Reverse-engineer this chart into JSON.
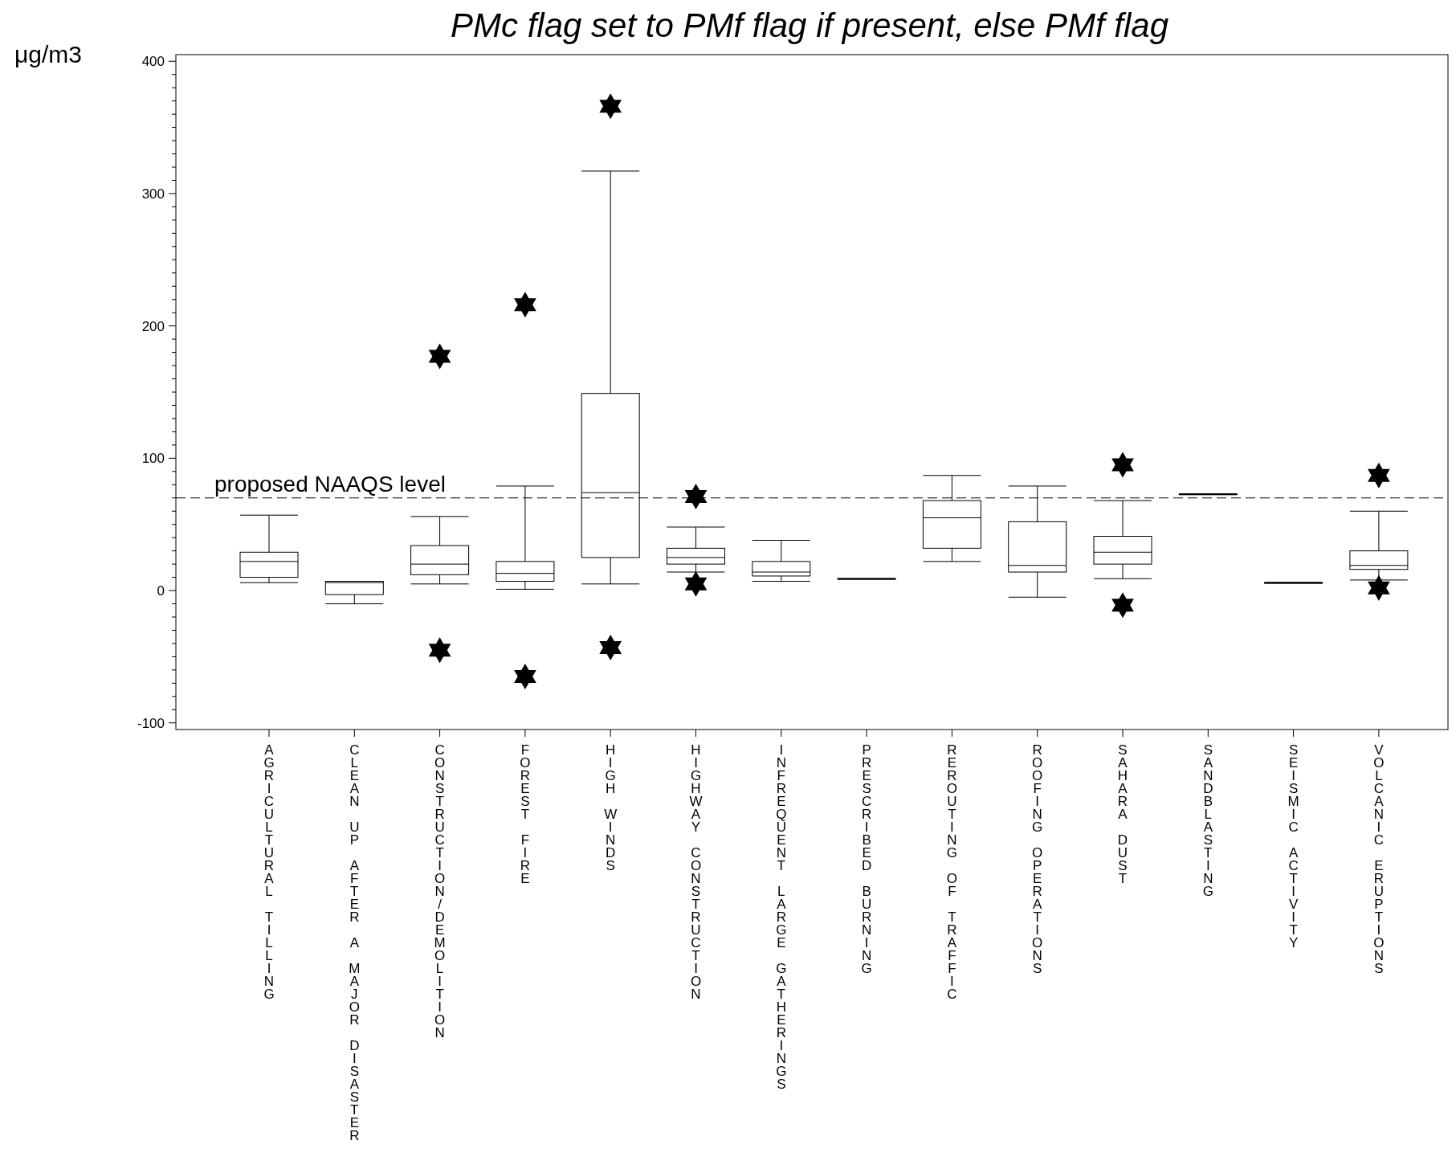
{
  "chart_data": {
    "type": "box",
    "title": "PMc flag set to PMf flag if present, else PMf flag",
    "ylabel": "μg/m3",
    "categories": [
      "AGRICULTURAL TILLING",
      "CLEAN UP AFTER A MAJOR DISASTER",
      "CONSTRUCTION/DEMOLITION",
      "FOREST FIRE",
      "HIGH WINDS",
      "HIGHWAY CONSTRUCTION",
      "INFREQUENT LARGE GATHERINGS",
      "PRESCRIBED BURNING",
      "REROUTING OF TRAFFIC",
      "ROOFING OPERATIONS",
      "SAHARA DUST",
      "SANDBLASTING",
      "SEISMIC ACTIVITY",
      "VOLCANIC ERUPTIONS"
    ],
    "boxes": [
      {
        "low": 6,
        "q1": 10,
        "median": 22,
        "q3": 29,
        "high": 57
      },
      {
        "low": -10,
        "q1": -3,
        "median": 6,
        "q3": 7,
        "high": 7
      },
      {
        "low": 5,
        "q1": 12,
        "median": 20,
        "q3": 34,
        "high": 56,
        "outliers": [
          177,
          -45
        ]
      },
      {
        "low": 1,
        "q1": 7,
        "median": 13,
        "q3": 22,
        "high": 79,
        "outliers": [
          216,
          -65
        ]
      },
      {
        "low": 5,
        "q1": 25,
        "median": 74,
        "q3": 149,
        "high": 317,
        "outliers": [
          366,
          -43
        ]
      },
      {
        "low": 14,
        "q1": 20,
        "median": 25,
        "q3": 32,
        "high": 48,
        "outliers": [
          71,
          5
        ]
      },
      {
        "low": 7,
        "q1": 11,
        "median": 14,
        "q3": 22,
        "high": 38
      },
      {
        "low": 9,
        "q1": 9,
        "median": 9,
        "q3": 9,
        "high": 9
      },
      {
        "low": 22,
        "q1": 32,
        "median": 55,
        "q3": 68,
        "high": 87
      },
      {
        "low": -5,
        "q1": 14,
        "median": 19,
        "q3": 52,
        "high": 79
      },
      {
        "low": 9,
        "q1": 20,
        "median": 29,
        "q3": 41,
        "high": 68,
        "outliers": [
          95,
          -11
        ]
      },
      {
        "low": 73,
        "q1": 73,
        "median": 73,
        "q3": 73,
        "high": 73
      },
      {
        "low": 6,
        "q1": 6,
        "median": 6,
        "q3": 6,
        "high": 6
      },
      {
        "low": 8,
        "q1": 16,
        "median": 19,
        "q3": 30,
        "high": 60,
        "outliers": [
          87,
          2
        ]
      }
    ],
    "marker": "star",
    "ylim": [
      -105,
      405
    ],
    "yticks": [
      -100,
      {
        "value": -90,
        "label": null
      },
      {
        "value": -80,
        "label": null
      },
      {
        "value": -70,
        "label": null
      },
      {
        "value": -60,
        "label": null
      },
      {
        "value": -50,
        "label": null
      },
      {
        "value": -40,
        "label": null
      },
      {
        "value": -30,
        "label": null
      },
      {
        "value": -20,
        "label": null
      },
      {
        "value": -10,
        "label": null
      },
      0,
      {
        "value": 10,
        "label": null
      },
      {
        "value": 20,
        "label": null
      },
      {
        "value": 30,
        "label": null
      },
      {
        "value": 40,
        "label": null
      },
      {
        "value": 50,
        "label": null
      },
      {
        "value": 60,
        "label": null
      },
      {
        "value": 70,
        "label": null
      },
      {
        "value": 80,
        "label": null
      },
      {
        "value": 90,
        "label": null
      },
      100,
      {
        "value": 110,
        "label": null
      },
      {
        "value": 120,
        "label": null
      },
      {
        "value": 130,
        "label": null
      },
      {
        "value": 140,
        "label": null
      },
      {
        "value": 150,
        "label": null
      },
      {
        "value": 160,
        "label": null
      },
      {
        "value": 170,
        "label": null
      },
      {
        "value": 180,
        "label": null
      },
      {
        "value": 190,
        "label": null
      },
      200,
      {
        "value": 210,
        "label": null
      },
      {
        "value": 220,
        "label": null
      },
      {
        "value": 230,
        "label": null
      },
      {
        "value": 240,
        "label": null
      },
      {
        "value": 250,
        "label": null
      },
      {
        "value": 260,
        "label": null
      },
      {
        "value": 270,
        "label": null
      },
      {
        "value": 280,
        "label": null
      },
      {
        "value": 290,
        "label": null
      },
      300,
      {
        "value": 310,
        "label": null
      },
      {
        "value": 320,
        "label": null
      },
      {
        "value": 330,
        "label": null
      },
      {
        "value": 340,
        "label": null
      },
      {
        "value": 350,
        "label": null
      },
      {
        "value": 360,
        "label": null
      },
      {
        "value": 370,
        "label": null
      },
      {
        "value": 380,
        "label": null
      },
      {
        "value": 390,
        "label": null
      },
      400
    ],
    "ref_lines": [
      {
        "axis": "y",
        "value": 70,
        "label": "proposed NAAQS level",
        "line_style": "dashed"
      }
    ],
    "grid": false
  }
}
